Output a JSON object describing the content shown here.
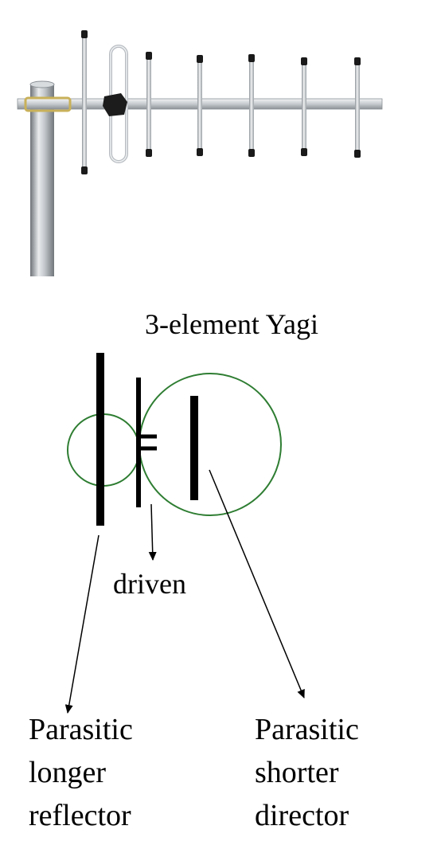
{
  "diagram": {
    "title": "3-element Yagi",
    "driven_label": "driven",
    "reflector_label": [
      "Parasitic",
      "longer",
      "reflector"
    ],
    "director_label": [
      "Parasitic",
      "shorter",
      "director"
    ]
  },
  "colors": {
    "ink": "#000000",
    "field_circle": "#2e7d32",
    "metal_light": "#e4e6e8",
    "metal_mid": "#b9bec3",
    "metal_dark": "#7d8388",
    "cap": "#1a1a1a",
    "clamp": "#c9b15a"
  }
}
